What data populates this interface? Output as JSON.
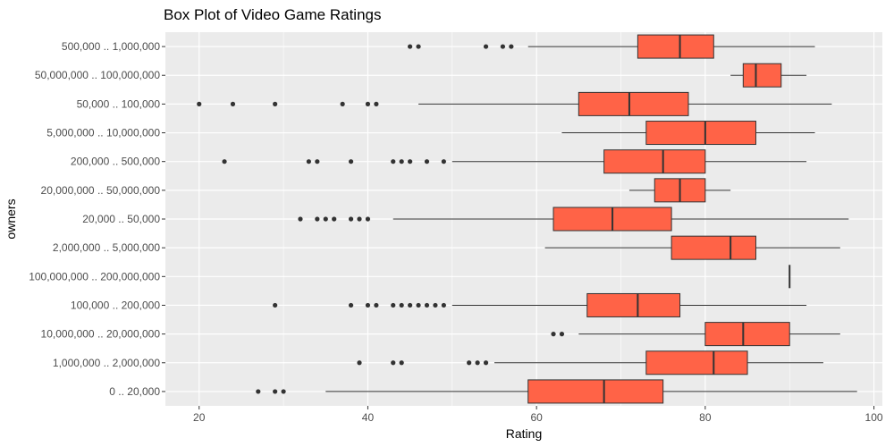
{
  "chart_data": {
    "type": "boxplot",
    "orientation": "horizontal",
    "title": "Box Plot of Video Game Ratings",
    "xlabel": "Rating",
    "ylabel": "owners",
    "xlim": [
      16,
      101
    ],
    "xticks": [
      20,
      40,
      60,
      80,
      100
    ],
    "grid": true,
    "colors": {
      "box_fill": "#ff6347",
      "panel_bg": "#ebebeb",
      "grid": "#ffffff",
      "outline": "#333333",
      "outlier": "#333333"
    },
    "categories": [
      {
        "label": "500,000 .. 1,000,000",
        "whisker_low": 59,
        "q1": 72,
        "median": 77,
        "q3": 81,
        "whisker_high": 93,
        "outliers": [
          45,
          46,
          54,
          56,
          57
        ]
      },
      {
        "label": "50,000,000 .. 100,000,000",
        "whisker_low": 83,
        "q1": 84.5,
        "median": 86,
        "q3": 89,
        "whisker_high": 92,
        "outliers": []
      },
      {
        "label": "50,000 .. 100,000",
        "whisker_low": 46,
        "q1": 65,
        "median": 71,
        "q3": 78,
        "whisker_high": 95,
        "outliers": [
          20,
          24,
          29,
          37,
          40,
          41
        ]
      },
      {
        "label": "5,000,000 .. 10,000,000",
        "whisker_low": 63,
        "q1": 73,
        "median": 80,
        "q3": 86,
        "whisker_high": 93,
        "outliers": []
      },
      {
        "label": "200,000 .. 500,000",
        "whisker_low": 50,
        "q1": 68,
        "median": 75,
        "q3": 80,
        "whisker_high": 92,
        "outliers": [
          23,
          33,
          34,
          38,
          43,
          44,
          45,
          47,
          49
        ]
      },
      {
        "label": "20,000,000 .. 50,000,000",
        "whisker_low": 71,
        "q1": 74,
        "median": 77,
        "q3": 80,
        "whisker_high": 83,
        "outliers": []
      },
      {
        "label": "20,000 .. 50,000",
        "whisker_low": 43,
        "q1": 62,
        "median": 69,
        "q3": 76,
        "whisker_high": 97,
        "outliers": [
          32,
          34,
          35,
          36,
          38,
          39,
          40
        ]
      },
      {
        "label": "2,000,000 .. 5,000,000",
        "whisker_low": 61,
        "q1": 76,
        "median": 83,
        "q3": 86,
        "whisker_high": 96,
        "outliers": []
      },
      {
        "label": "100,000,000 .. 200,000,000",
        "whisker_low": 90,
        "q1": 90,
        "median": 90,
        "q3": 90,
        "whisker_high": 90,
        "outliers": []
      },
      {
        "label": "100,000 .. 200,000",
        "whisker_low": 50,
        "q1": 66,
        "median": 72,
        "q3": 77,
        "whisker_high": 92,
        "outliers": [
          29,
          38,
          40,
          41,
          43,
          44,
          45,
          46,
          47,
          48,
          49
        ]
      },
      {
        "label": "10,000,000 .. 20,000,000",
        "whisker_low": 65,
        "q1": 80,
        "median": 84.5,
        "q3": 90,
        "whisker_high": 96,
        "outliers": [
          62,
          63
        ]
      },
      {
        "label": "1,000,000 .. 2,000,000",
        "whisker_low": 55,
        "q1": 73,
        "median": 81,
        "q3": 85,
        "whisker_high": 94,
        "outliers": [
          39,
          43,
          44,
          52,
          53,
          54
        ]
      },
      {
        "label": "0 .. 20,000",
        "whisker_low": 35,
        "q1": 59,
        "median": 68,
        "q3": 75,
        "whisker_high": 98,
        "outliers": [
          27,
          29,
          30
        ]
      }
    ]
  }
}
